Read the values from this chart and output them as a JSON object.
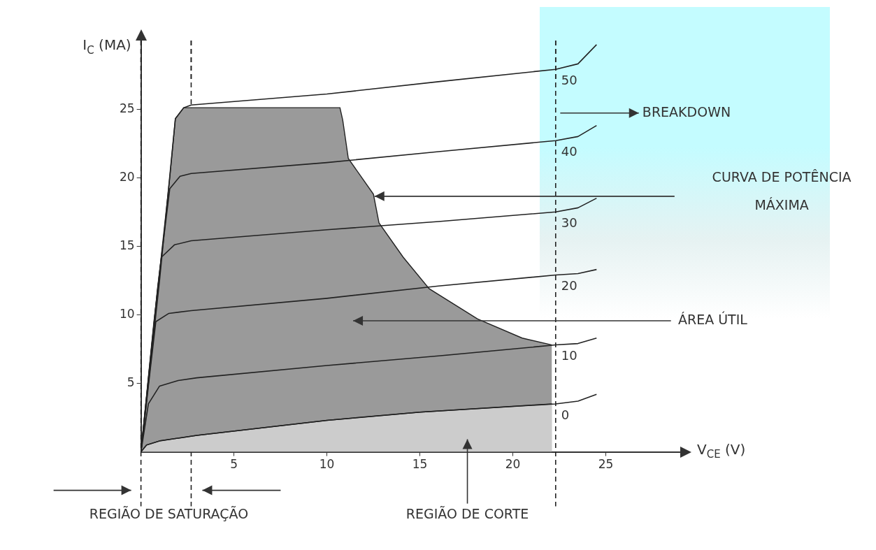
{
  "chart_data": {
    "type": "line",
    "xlabel": "V$_{CE}$ (V)",
    "ylabel": "I$_{C}$ (MA)",
    "xlim": [
      0,
      29
    ],
    "xticks": [
      5,
      10,
      15,
      20,
      25
    ],
    "ylim": [
      0,
      30
    ],
    "yticks": [
      5,
      10,
      15,
      20,
      25
    ],
    "series": [
      {
        "type": "area",
        "color": "#9a9a9a",
        "x": [
          0,
          0.75,
          1.55,
          1.85,
          2.3,
          10.7,
          10.85,
          11.15,
          12.5,
          12.8,
          14.1,
          15.5,
          18.1,
          20.5,
          22.1
        ],
        "values": [
          0,
          10,
          20,
          24.3,
          25.1,
          25.1,
          24.2,
          21.4,
          18.8,
          16.7,
          14.2,
          11.9,
          9.7,
          8.3,
          7.8
        ]
      },
      {
        "type": "area",
        "color": "#cccccc",
        "x": [
          0,
          0.3,
          1,
          3,
          10,
          15,
          22.1
        ],
        "values": [
          0,
          0.5,
          0.8,
          1.2,
          2.3,
          2.9,
          3.5
        ]
      },
      {
        "type": "line",
        "name": "0",
        "color": "#222222",
        "x": [
          0,
          0.3,
          1,
          3,
          10,
          15,
          22.3,
          23.5,
          24.5
        ],
        "values": [
          0,
          0.5,
          0.8,
          1.2,
          2.3,
          2.9,
          3.5,
          3.7,
          4.2
        ]
      },
      {
        "type": "line",
        "name": "10",
        "color": "#222222",
        "x": [
          0,
          0.4,
          1,
          2,
          3,
          10,
          16,
          22.3,
          23.5,
          24.5
        ],
        "values": [
          0,
          3.5,
          4.8,
          5.2,
          5.4,
          6.3,
          7,
          7.8,
          7.9,
          8.3
        ]
      },
      {
        "type": "line",
        "name": "20",
        "color": "#222222",
        "x": [
          0,
          0.5,
          0.8,
          1.5,
          2.7,
          10,
          16,
          22.3,
          23.5,
          24.5
        ],
        "values": [
          0,
          6,
          9.5,
          10.1,
          10.3,
          11.2,
          12.1,
          12.9,
          13,
          13.3
        ]
      },
      {
        "type": "line",
        "name": "30",
        "color": "#222222",
        "x": [
          0,
          0.7,
          1.1,
          1.8,
          2.7,
          10,
          16,
          22.3,
          23.5,
          24.5
        ],
        "values": [
          0,
          9.5,
          14.2,
          15.1,
          15.4,
          16.2,
          16.8,
          17.5,
          17.8,
          18.5
        ]
      },
      {
        "type": "line",
        "name": "40",
        "color": "#222222",
        "x": [
          0,
          0.9,
          1.55,
          2.1,
          2.7,
          10,
          16,
          22.3,
          23.5,
          24.5
        ],
        "values": [
          0,
          12,
          19.2,
          20.1,
          20.3,
          21.1,
          21.9,
          22.7,
          23,
          23.8
        ]
      },
      {
        "type": "line",
        "name": "50",
        "color": "#222222",
        "x": [
          0,
          1,
          1.85,
          2.3,
          2.7,
          10,
          16,
          22.3,
          23.5,
          24.5
        ],
        "values": [
          0,
          12.5,
          24.3,
          25.1,
          25.3,
          26.1,
          27,
          27.9,
          28.3,
          29.7
        ]
      }
    ],
    "ref_lines": [
      {
        "axis": "x",
        "value": 0,
        "line_style": "dashed",
        "color": "#222222"
      },
      {
        "axis": "x",
        "value": 2.7,
        "line_style": "dashed",
        "color": "#222222"
      },
      {
        "axis": "x",
        "value": 22.3,
        "line_style": "dashed",
        "color": "#222222"
      }
    ],
    "annotations": [
      "BREAKDOWN",
      "CURVA DE POTÊNCIA MÁXIMA",
      "ÁREA ÚTIL",
      "REGIÃO DE SATURAÇÃO",
      "REGIÃO DE CORTE"
    ],
    "legend": false
  }
}
